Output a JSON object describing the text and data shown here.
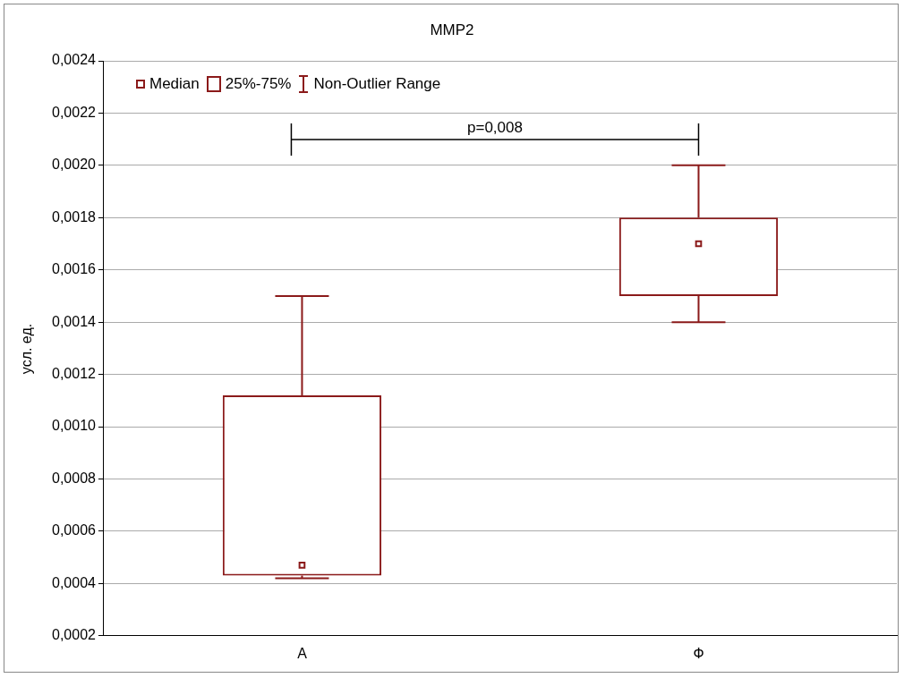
{
  "chart_data": {
    "type": "box",
    "title": "MMP2",
    "ylabel": "усл. ед.",
    "categories": [
      "А",
      "Ф"
    ],
    "series": [
      {
        "name": null,
        "color": "#8b1a1a",
        "boxes": [
          {
            "low": 0.00042,
            "q1": 0.00043,
            "median": 0.00047,
            "q3": 0.00112,
            "high": 0.0015
          },
          {
            "low": 0.0014,
            "q1": 0.0015,
            "median": 0.0017,
            "q3": 0.0018,
            "high": 0.002
          }
        ]
      }
    ],
    "ylim": [
      0.0002,
      0.0024
    ],
    "yticks": [
      {
        "value": 0.0002,
        "label": "0,0002"
      },
      {
        "value": 0.0004,
        "label": "0,0004"
      },
      {
        "value": 0.0006,
        "label": "0,0006"
      },
      {
        "value": 0.0008,
        "label": "0,0008"
      },
      {
        "value": 0.001,
        "label": "0,0010"
      },
      {
        "value": 0.0012,
        "label": "0,0012"
      },
      {
        "value": 0.0014,
        "label": "0,0014"
      },
      {
        "value": 0.0016,
        "label": "0,0016"
      },
      {
        "value": 0.0018,
        "label": "0,0018"
      },
      {
        "value": 0.002,
        "label": "0,0020"
      },
      {
        "value": 0.0022,
        "label": "0,0022"
      },
      {
        "value": 0.0024,
        "label": "0,0024"
      }
    ],
    "grid": "y",
    "marker": "square",
    "annotations": [
      "Median",
      "25%-75%",
      "Non-Outlier Range",
      "p=0,008"
    ]
  }
}
